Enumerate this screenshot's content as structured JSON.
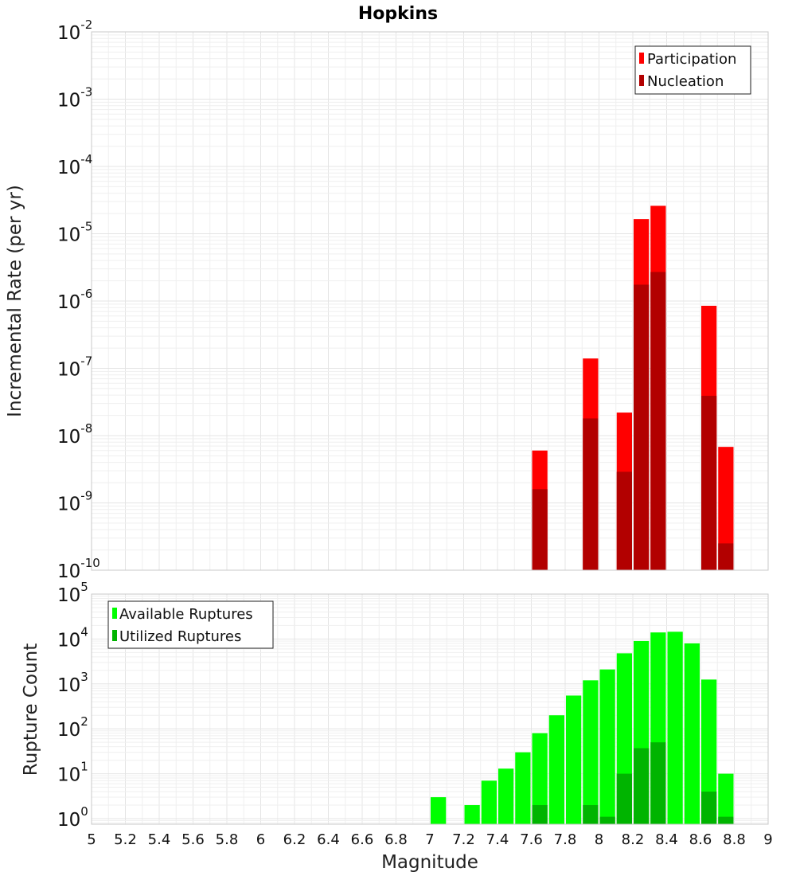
{
  "chart_data": [
    {
      "type": "bar",
      "title": "Hopkins",
      "xlabel": "",
      "ylabel": "Incremental Rate (per yr)",
      "yscale": "log",
      "xlim": [
        5,
        9
      ],
      "ylim": [
        1e-10,
        0.01
      ],
      "grid": true,
      "legend_position": "top-right",
      "series": [
        {
          "name": "Participation",
          "color": "#ff0000",
          "x": [
            7.65,
            7.95,
            8.15,
            8.25,
            8.35,
            8.65,
            8.75
          ],
          "values": [
            6e-09,
            1.4e-07,
            2.2e-08,
            1.65e-05,
            2.6e-05,
            8.5e-07,
            6.8e-09
          ]
        },
        {
          "name": "Nucleation",
          "color": "#b20000",
          "x": [
            7.65,
            7.95,
            8.15,
            8.25,
            8.35,
            8.65,
            8.75
          ],
          "values": [
            1.6e-09,
            1.8e-08,
            2.9e-09,
            1.75e-06,
            2.7e-06,
            3.9e-08,
            2.5e-10
          ]
        }
      ]
    },
    {
      "type": "bar",
      "title": "",
      "xlabel": "Magnitude",
      "ylabel": "Rupture Count",
      "yscale": "log",
      "xlim": [
        5,
        9
      ],
      "ylim": [
        0.75,
        100000.0
      ],
      "grid": true,
      "legend_position": "top-left",
      "x_ticks": [
        "5",
        "5.2",
        "5.4",
        "5.6",
        "5.8",
        "6",
        "6.2",
        "6.4",
        "6.6",
        "6.8",
        "7",
        "7.2",
        "7.4",
        "7.6",
        "7.8",
        "8",
        "8.2",
        "8.4",
        "8.6",
        "8.8",
        "9"
      ],
      "series": [
        {
          "name": "Available Ruptures",
          "color": "#00ff00",
          "x": [
            7.05,
            7.25,
            7.35,
            7.45,
            7.55,
            7.65,
            7.75,
            7.85,
            7.95,
            8.05,
            8.15,
            8.25,
            8.35,
            8.45,
            8.55,
            8.65,
            8.75
          ],
          "values": [
            3,
            2,
            7,
            13,
            30,
            80,
            200,
            550,
            1200,
            2100,
            4800,
            9000,
            14000,
            14500,
            8000,
            1250,
            10
          ]
        },
        {
          "name": "Utilized Ruptures",
          "color": "#00b400",
          "x": [
            7.65,
            7.95,
            8.05,
            8.15,
            8.25,
            8.35,
            8.65,
            8.75
          ],
          "values": [
            2,
            2,
            1.1,
            10,
            37,
            50,
            4,
            1.1
          ]
        }
      ]
    }
  ]
}
